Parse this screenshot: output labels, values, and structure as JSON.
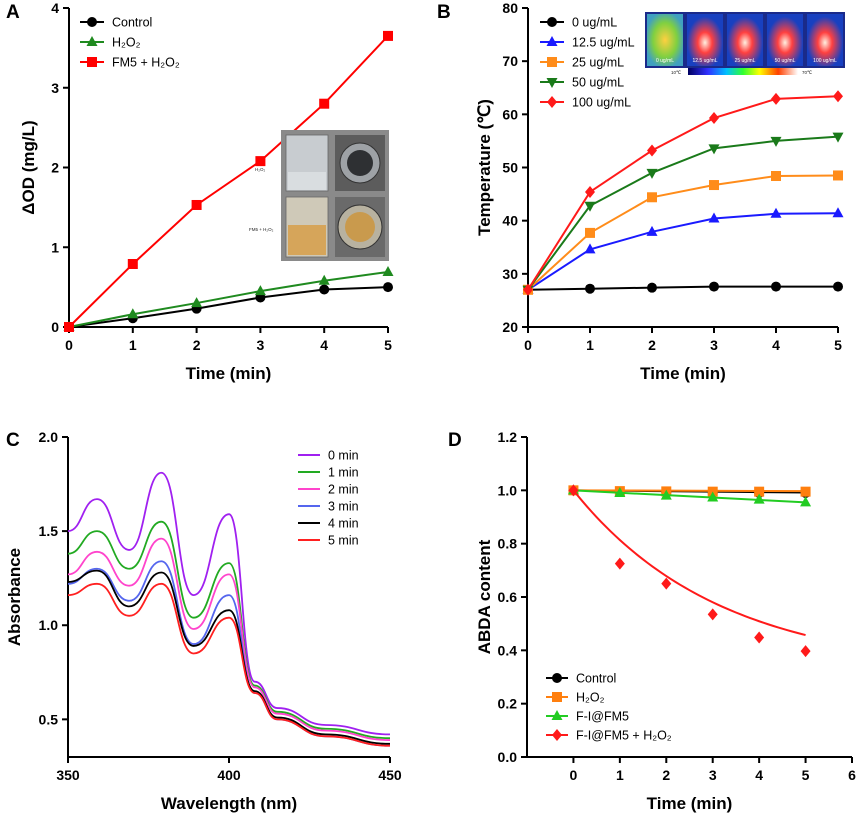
{
  "panels": {
    "A": {
      "panel_label": "A",
      "inset": {
        "label_h2o2": "H₂O₂",
        "label_fm5": "FM5 + H₂O₂"
      },
      "chart_data": {
        "type": "line",
        "title": "",
        "xlabel": "Time (min)",
        "ylabel": "ΔOD (mg/L)",
        "xlim": [
          0,
          5
        ],
        "ylim": [
          0,
          4
        ],
        "xticks": [
          0,
          1,
          2,
          3,
          4,
          5
        ],
        "yticks": [
          0,
          1,
          2,
          3,
          4
        ],
        "x": [
          0,
          1,
          2,
          3,
          4,
          5
        ],
        "series": [
          {
            "name": "Control",
            "color": "#000000",
            "marker": "circle",
            "values": [
              0,
              0.11,
              0.23,
              0.37,
              0.47,
              0.5
            ]
          },
          {
            "name": "H₂O₂",
            "color": "#1f8a1f",
            "marker": "triangle-up",
            "values": [
              0,
              0.16,
              0.3,
              0.45,
              0.58,
              0.69
            ]
          },
          {
            "name": "FM5 + H₂O₂",
            "color": "#ff0000",
            "marker": "square",
            "values": [
              0,
              0.79,
              1.53,
              2.08,
              2.8,
              3.65
            ]
          }
        ],
        "legend": "top-left"
      }
    },
    "B": {
      "panel_label": "B",
      "inset": {
        "tube_labels": [
          "0 ug/mL",
          "12.5 ug/mL",
          "25 ug/mL",
          "50 ug/mL",
          "100 ug/mL"
        ],
        "scale_min": "10℃",
        "scale_max": "70℃"
      },
      "chart_data": {
        "type": "line",
        "title": "",
        "xlabel": "Time (min)",
        "ylabel": "Temperature (℃)",
        "xlim": [
          0,
          5
        ],
        "ylim": [
          20,
          80
        ],
        "xticks": [
          0,
          1,
          2,
          3,
          4,
          5
        ],
        "yticks": [
          20,
          30,
          40,
          50,
          60,
          70,
          80
        ],
        "x": [
          0,
          1,
          2,
          3,
          4,
          5
        ],
        "series": [
          {
            "name": "0 ug/mL",
            "color": "#000000",
            "marker": "circle",
            "values": [
              27.0,
              27.2,
              27.4,
              27.6,
              27.6,
              27.6
            ]
          },
          {
            "name": "12.5 ug/mL",
            "color": "#1a1aff",
            "marker": "triangle-up",
            "values": [
              27.0,
              34.6,
              37.9,
              40.4,
              41.3,
              41.4
            ]
          },
          {
            "name": "25 ug/mL",
            "color": "#ff8c1a",
            "marker": "square",
            "values": [
              27.0,
              37.7,
              44.4,
              46.7,
              48.4,
              48.5
            ]
          },
          {
            "name": "50 ug/mL",
            "color": "#1a7a1a",
            "marker": "triangle-down",
            "values": [
              27.0,
              42.8,
              49.0,
              53.6,
              55.0,
              55.8
            ]
          },
          {
            "name": "100 ug/mL",
            "color": "#ff1a1a",
            "marker": "diamond",
            "values": [
              27.0,
              45.4,
              53.2,
              59.3,
              62.9,
              63.4
            ]
          }
        ],
        "legend": "top-left"
      }
    },
    "C": {
      "panel_label": "C",
      "chart_data": {
        "type": "line",
        "title": "",
        "xlabel": "Wavelength (nm)",
        "ylabel": "Absorbance",
        "xlim": [
          350,
          450
        ],
        "ylim": [
          0.3,
          2.0
        ],
        "xticks": [
          350,
          400,
          450
        ],
        "yticks": [
          0.5,
          1.0,
          1.5,
          2.0
        ],
        "ytick_labels": [
          "0.5",
          "1.0",
          "1.5",
          "2.0"
        ],
        "series": [
          {
            "name": "0 min",
            "color": "#a020f0",
            "peaks": [
              1.67,
              1.81,
              1.59
            ],
            "valleys": [
              1.4,
              1.16
            ],
            "start": 1.5,
            "tail": 0.42
          },
          {
            "name": "1 min",
            "color": "#22aa22",
            "peaks": [
              1.5,
              1.55,
              1.33
            ],
            "valleys": [
              1.3,
              1.04
            ],
            "start": 1.38,
            "tail": 0.4
          },
          {
            "name": "2 min",
            "color": "#ff44cc",
            "peaks": [
              1.39,
              1.46,
              1.27
            ],
            "valleys": [
              1.21,
              0.98
            ],
            "start": 1.27,
            "tail": 0.39
          },
          {
            "name": "3 min",
            "color": "#5566ee",
            "peaks": [
              1.3,
              1.34,
              1.16
            ],
            "valleys": [
              1.13,
              0.9
            ],
            "start": 1.22,
            "tail": 0.36
          },
          {
            "name": "4 min",
            "color": "#000000",
            "peaks": [
              1.29,
              1.28,
              1.08
            ],
            "valleys": [
              1.1,
              0.89
            ],
            "start": 1.23,
            "tail": 0.37
          },
          {
            "name": "5 min",
            "color": "#ff2020",
            "peaks": [
              1.22,
              1.22,
              1.04
            ],
            "valleys": [
              1.05,
              0.85
            ],
            "start": 1.16,
            "tail": 0.36
          }
        ],
        "peak_wavelengths": [
          359,
          379,
          400
        ],
        "valley_wavelengths": [
          369,
          389
        ],
        "legend": "top-right"
      }
    },
    "D": {
      "panel_label": "D",
      "chart_data": {
        "type": "scatter",
        "title": "",
        "xlabel": "Time (min)",
        "ylabel": "ABDA content",
        "xlim": [
          -1,
          6
        ],
        "ylim": [
          0,
          1.2
        ],
        "xticks": [
          0,
          1,
          2,
          3,
          4,
          5,
          6
        ],
        "yticks": [
          0,
          0.2,
          0.4,
          0.6,
          0.8,
          1.0,
          1.2
        ],
        "ytick_labels": [
          "0.0",
          "0.2",
          "0.4",
          "0.6",
          "0.8",
          "1.0",
          "1.2"
        ],
        "x": [
          0,
          1,
          2,
          3,
          4,
          5
        ],
        "series": [
          {
            "name": "Control",
            "color": "#000000",
            "marker": "circle",
            "values": [
              1.0,
              0.995,
              0.993,
              0.99,
              0.99,
              0.99
            ],
            "fit": [
              1.0,
              0.992
            ]
          },
          {
            "name": "H₂O₂",
            "color": "#ff7f0e",
            "marker": "square",
            "values": [
              1.0,
              0.997,
              0.996,
              0.995,
              0.995,
              0.995
            ],
            "fit": [
              1.0,
              0.997
            ]
          },
          {
            "name": "F-I@FM5",
            "color": "#22cc22",
            "marker": "triangle-up",
            "values": [
              1.0,
              0.99,
              0.98,
              0.973,
              0.965,
              0.955
            ],
            "fit": [
              1.0,
              0.955
            ]
          },
          {
            "name": "F-I@FM5 + H₂O₂",
            "color": "#ff1a1a",
            "marker": "diamond",
            "values": [
              1.0,
              0.725,
              0.65,
              0.535,
              0.448,
              0.397
            ],
            "fit_curve": {
              "a": 0.68,
              "k": 0.32,
              "c": 0.32
            }
          }
        ],
        "legend": "bottom-left"
      }
    }
  }
}
